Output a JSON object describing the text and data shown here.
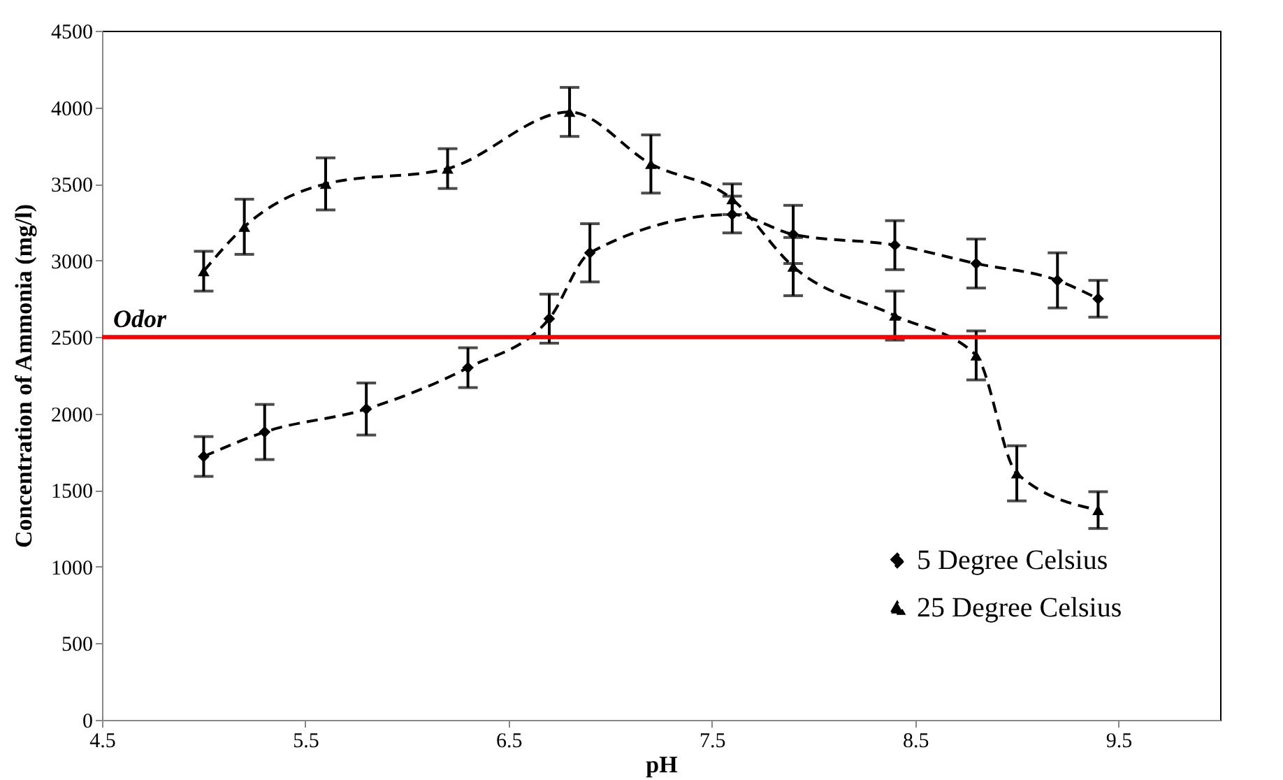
{
  "chart_data": {
    "type": "line",
    "xlabel": "pH",
    "ylabel": "Concentration of Ammonia (mg/l)",
    "xlim": [
      4.5,
      10
    ],
    "xticks": [
      4.5,
      5.5,
      6.5,
      7.5,
      8.5,
      9.5
    ],
    "ylim": [
      0,
      4500
    ],
    "yticks": [
      0,
      500,
      1000,
      1500,
      2000,
      2500,
      3000,
      3500,
      4000,
      4500
    ],
    "grid": false,
    "legend": "bottom right",
    "line_style": "dashed",
    "ref_lines": [
      {
        "axis": "y",
        "value": 2500,
        "label": "Odor",
        "color": "#ff0000"
      }
    ],
    "series": [
      {
        "name": "5 Degree Celsius",
        "color": "#000000",
        "marker": "diamond",
        "x": [
          5.0,
          5.3,
          5.8,
          6.3,
          6.7,
          6.9,
          7.6,
          7.9,
          8.4,
          8.8,
          9.2,
          9.4
        ],
        "values": [
          1720,
          1880,
          2030,
          2300,
          2620,
          3050,
          3300,
          3170,
          3100,
          2980,
          2870,
          2750
        ],
        "errors": [
          130,
          180,
          170,
          130,
          160,
          190,
          120,
          190,
          160,
          160,
          180,
          120
        ]
      },
      {
        "name": "25 Degree Celsius",
        "color": "#000000",
        "marker": "triangle",
        "x": [
          5.0,
          5.2,
          5.6,
          6.2,
          6.8,
          7.2,
          7.6,
          7.9,
          8.4,
          8.8,
          9.0,
          9.4
        ],
        "values": [
          2930,
          3220,
          3500,
          3600,
          3970,
          3630,
          3400,
          2960,
          2640,
          2380,
          1610,
          1370
        ],
        "errors": [
          130,
          180,
          170,
          130,
          160,
          190,
          100,
          190,
          160,
          160,
          180,
          120
        ]
      }
    ]
  }
}
